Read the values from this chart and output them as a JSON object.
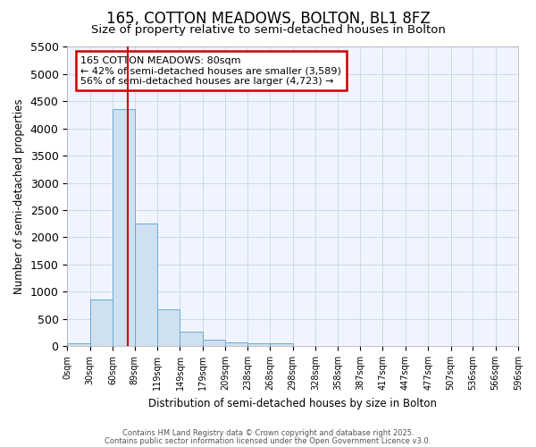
{
  "title_line1": "165, COTTON MEADOWS, BOLTON, BL1 8FZ",
  "title_line2": "Size of property relative to semi-detached houses in Bolton",
  "xlabel": "Distribution of semi-detached houses by size in Bolton",
  "ylabel": "Number of semi-detached properties",
  "property_size": 80,
  "pct_smaller": 42,
  "count_smaller": "3,589",
  "pct_larger": 56,
  "count_larger": "4,723",
  "bin_edges": [
    0,
    30,
    60,
    89,
    119,
    149,
    179,
    209,
    238,
    268,
    298,
    328,
    358,
    387,
    417,
    447,
    477,
    507,
    536,
    566,
    596
  ],
  "bar_heights": [
    50,
    850,
    4350,
    2250,
    680,
    260,
    120,
    70,
    55,
    55,
    0,
    0,
    0,
    0,
    0,
    0,
    0,
    0,
    0,
    0
  ],
  "bar_color": "#cfe0f0",
  "bar_edge_color": "#6aaad4",
  "red_line_color": "#cc0000",
  "annotation_box_edge_color": "#cc0000",
  "background_color": "#ffffff",
  "plot_bg_color": "#f0f4ff",
  "grid_color": "#c8d4e8",
  "ylim": [
    0,
    5500
  ],
  "yticks": [
    0,
    500,
    1000,
    1500,
    2000,
    2500,
    3000,
    3500,
    4000,
    4500,
    5000,
    5500
  ],
  "tick_labels": [
    "0sqm",
    "30sqm",
    "60sqm",
    "89sqm",
    "119sqm",
    "149sqm",
    "179sqm",
    "209sqm",
    "238sqm",
    "268sqm",
    "298sqm",
    "328sqm",
    "358sqm",
    "387sqm",
    "417sqm",
    "447sqm",
    "477sqm",
    "507sqm",
    "536sqm",
    "566sqm",
    "596sqm"
  ],
  "tick_positions": [
    0,
    30,
    60,
    89,
    119,
    149,
    179,
    209,
    238,
    268,
    298,
    328,
    358,
    387,
    417,
    447,
    477,
    507,
    536,
    566,
    596
  ],
  "footer_line1": "Contains HM Land Registry data © Crown copyright and database right 2025.",
  "footer_line2": "Contains public sector information licensed under the Open Government Licence v3.0."
}
